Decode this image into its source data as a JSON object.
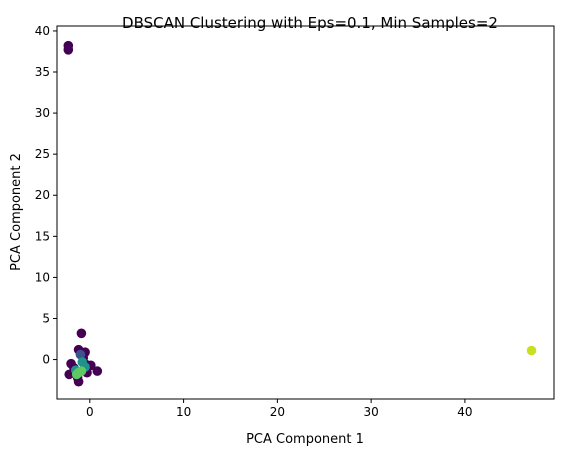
{
  "chart_data": {
    "type": "scatter",
    "title": "DBSCAN Clustering with Eps=0.1, Min Samples=2",
    "xlabel": "PCA Component 1",
    "ylabel": "PCA Component 2",
    "xlim": [
      -3.5,
      49.5
    ],
    "ylim": [
      -4.8,
      40.6
    ],
    "xticks": [
      0,
      10,
      20,
      30,
      40
    ],
    "yticks": [
      0,
      5,
      10,
      15,
      20,
      25,
      30,
      35,
      40
    ],
    "xtick_labels": [
      "0",
      "10",
      "20",
      "30",
      "40"
    ],
    "ytick_labels": [
      "0",
      "5",
      "10",
      "15",
      "20",
      "25",
      "30",
      "35",
      "40"
    ],
    "grid": false,
    "legend": "none",
    "colors": {
      "noise": "#440154",
      "cluster_a": "#3b528b",
      "cluster_b": "#21918c",
      "cluster_c": "#5ec962",
      "cluster_d": "#c8e020"
    },
    "points": [
      {
        "x": -2.3,
        "y": 38.2,
        "group": "noise"
      },
      {
        "x": -2.3,
        "y": 37.7,
        "group": "noise"
      },
      {
        "x": -0.9,
        "y": 3.2,
        "group": "noise"
      },
      {
        "x": -1.2,
        "y": 1.2,
        "group": "noise"
      },
      {
        "x": -0.5,
        "y": 0.9,
        "group": "noise"
      },
      {
        "x": -0.7,
        "y": 0.2,
        "group": "noise"
      },
      {
        "x": -0.4,
        "y": -0.6,
        "group": "noise"
      },
      {
        "x": -2.0,
        "y": -0.5,
        "group": "noise"
      },
      {
        "x": -1.7,
        "y": -1.0,
        "group": "noise"
      },
      {
        "x": -2.2,
        "y": -1.8,
        "group": "noise"
      },
      {
        "x": -1.3,
        "y": -2.2,
        "group": "noise"
      },
      {
        "x": -1.2,
        "y": -2.7,
        "group": "noise"
      },
      {
        "x": 0.8,
        "y": -1.4,
        "group": "noise"
      },
      {
        "x": 0.1,
        "y": -0.7,
        "group": "noise"
      },
      {
        "x": -0.6,
        "y": -1.1,
        "group": "noise"
      },
      {
        "x": -0.3,
        "y": -1.6,
        "group": "noise"
      },
      {
        "x": -1.0,
        "y": 0.6,
        "group": "cluster_a"
      },
      {
        "x": -0.8,
        "y": -0.3,
        "group": "cluster_b"
      },
      {
        "x": -0.5,
        "y": -0.9,
        "group": "cluster_b"
      },
      {
        "x": -1.5,
        "y": -1.3,
        "group": "cluster_b"
      },
      {
        "x": -1.2,
        "y": -1.6,
        "group": "cluster_c"
      },
      {
        "x": -0.9,
        "y": -1.4,
        "group": "cluster_c"
      },
      {
        "x": -1.4,
        "y": -1.8,
        "group": "cluster_c"
      },
      {
        "x": 47.1,
        "y": 1.1,
        "group": "cluster_d"
      }
    ]
  }
}
